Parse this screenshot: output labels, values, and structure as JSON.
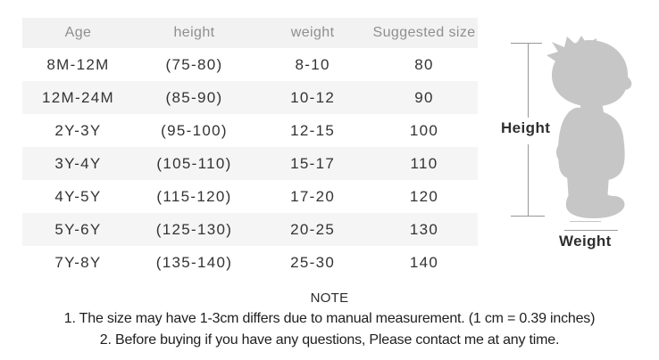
{
  "chart_data": {
    "type": "table",
    "headers": [
      "Age",
      "height",
      "weight",
      "Suggested size"
    ],
    "rows": [
      [
        "8M-12M",
        "(75-80)",
        "8-10",
        "80"
      ],
      [
        "12M-24M",
        "(85-90)",
        "10-12",
        "90"
      ],
      [
        "2Y-3Y",
        "(95-100)",
        "12-15",
        "100"
      ],
      [
        "3Y-4Y",
        "(105-110)",
        "15-17",
        "110"
      ],
      [
        "4Y-5Y",
        "(115-120)",
        "17-20",
        "120"
      ],
      [
        "5Y-6Y",
        "(125-130)",
        "20-25",
        "130"
      ],
      [
        "7Y-8Y",
        "(135-140)",
        "25-30",
        "140"
      ]
    ],
    "layout": "header row shaded, body rows alternate white/light-gray, all cells centered"
  },
  "figure": {
    "height_label": "Height",
    "weight_label": "Weight",
    "silhouette": "child-side-profile"
  },
  "note": {
    "title": "NOTE",
    "line1": "1. The size may have 1-3cm differs due to manual measurement. (1 cm = 0.39 inches)",
    "line2": "2. Before buying if you have any questions, Please contact me at any time."
  },
  "colors": {
    "header_bg": "#f2f2f2",
    "header_text": "#8f8f8f",
    "alt_row_bg": "#f5f5f5",
    "body_text": "#333333",
    "note_text": "#1e1e1e",
    "silhouette_gray": "#c6c6c6",
    "dimension_line_gray": "#979797"
  }
}
